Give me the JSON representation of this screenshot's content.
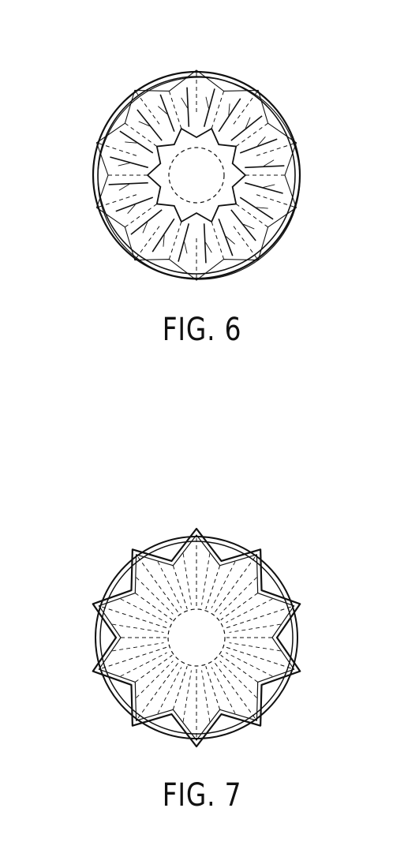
{
  "figures": [
    {
      "id": "fig6",
      "caption": "FIG. 6",
      "view": "top-view-of-fluted-cup"
    },
    {
      "id": "fig7",
      "caption": "FIG. 7",
      "view": "bottom-view-of-star-shaped-cup"
    }
  ],
  "colors": {
    "line": "#111111",
    "background": "#ffffff"
  }
}
